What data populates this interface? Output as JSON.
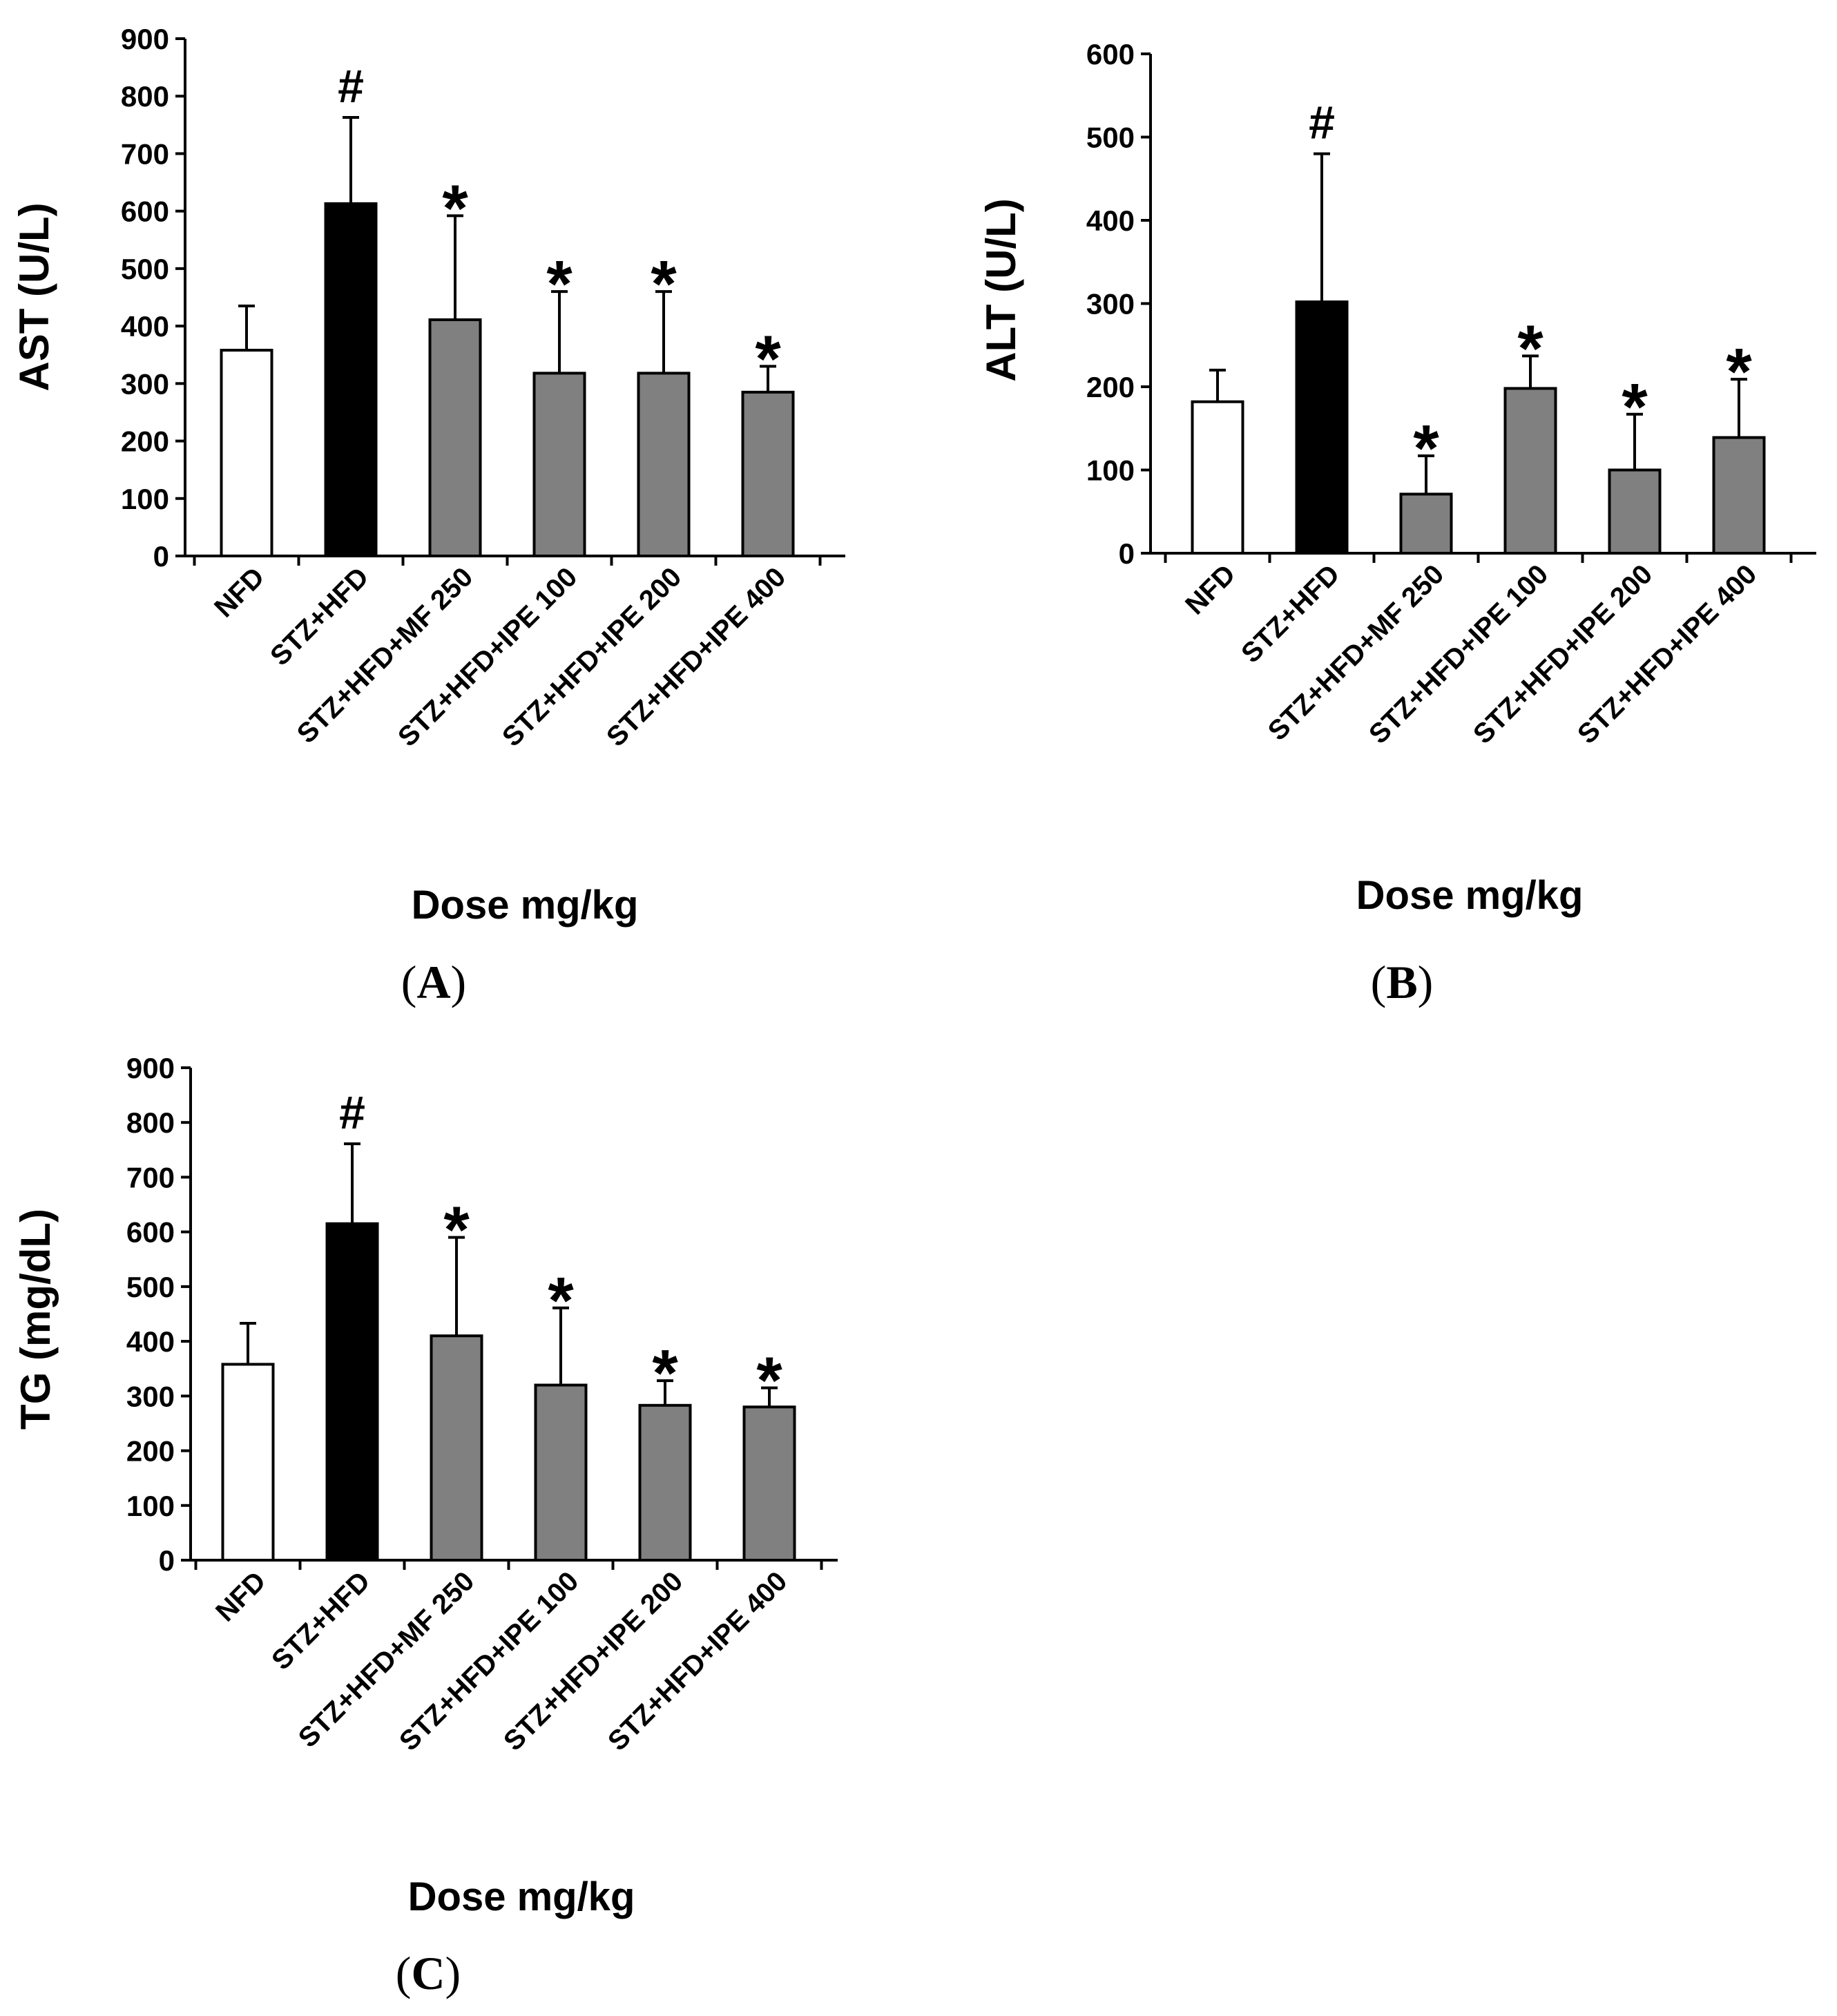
{
  "chart_data": [
    {
      "id": "A",
      "type": "bar",
      "panel_label": "A",
      "categories": [
        "NFD",
        "STZ+HFD",
        "STZ+HFD+MF 250",
        "STZ+HFD+IPE 100",
        "STZ+HFD+IPE 200",
        "STZ+HFD+IPE 400"
      ],
      "values": [
        358,
        613,
        411,
        318,
        318,
        285
      ],
      "errors": [
        77,
        150,
        181,
        142,
        142,
        45
      ],
      "significance": [
        "",
        "#",
        "*",
        "*",
        "*",
        "*"
      ],
      "bar_colors": [
        "#ffffff",
        "#000000",
        "#808080",
        "#808080",
        "#808080",
        "#808080"
      ],
      "ylabel": "AST (U/L)",
      "xlabel": "Dose mg/kg",
      "ylim": [
        0,
        900
      ],
      "yticks": [
        0,
        100,
        200,
        300,
        400,
        500,
        600,
        700,
        800,
        900
      ]
    },
    {
      "id": "B",
      "type": "bar",
      "panel_label": "B",
      "categories": [
        "NFD",
        "STZ+HFD",
        "STZ+HFD+MF 250",
        "STZ+HFD+IPE 100",
        "STZ+HFD+IPE 200",
        "STZ+HFD+IPE 400"
      ],
      "values": [
        182,
        302,
        71,
        198,
        100,
        139
      ],
      "errors": [
        38,
        178,
        46,
        39,
        67,
        70
      ],
      "significance": [
        "",
        "#",
        "*",
        "*",
        "*",
        "*"
      ],
      "bar_colors": [
        "#ffffff",
        "#000000",
        "#808080",
        "#808080",
        "#808080",
        "#808080"
      ],
      "ylabel": "ALT (U/L)",
      "xlabel": "Dose mg/kg",
      "ylim": [
        0,
        600
      ],
      "yticks": [
        0,
        100,
        200,
        300,
        400,
        500,
        600
      ]
    },
    {
      "id": "C",
      "type": "bar",
      "panel_label": "C",
      "categories": [
        "NFD",
        "STZ+HFD",
        "STZ+HFD+MF 250",
        "STZ+HFD+IPE 100",
        "STZ+HFD+IPE 200",
        "STZ+HFD+IPE 400"
      ],
      "values": [
        358,
        615,
        410,
        320,
        283,
        280
      ],
      "errors": [
        75,
        146,
        180,
        141,
        45,
        35
      ],
      "significance": [
        "",
        "#",
        "*",
        "*",
        "*",
        "*"
      ],
      "bar_colors": [
        "#ffffff",
        "#000000",
        "#808080",
        "#808080",
        "#808080",
        "#808080"
      ],
      "ylabel": "TG (mg/dL)",
      "xlabel": "Dose mg/kg",
      "ylim": [
        0,
        900
      ],
      "yticks": [
        0,
        100,
        200,
        300,
        400,
        500,
        600,
        700,
        800,
        900
      ]
    }
  ]
}
